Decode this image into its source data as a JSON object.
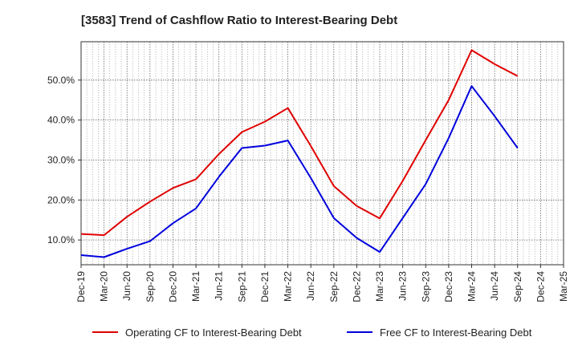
{
  "chart_data": {
    "type": "line",
    "title": "[3583]  Trend of Cashflow Ratio to Interest-Bearing Debt",
    "x": [
      "Dec-19",
      "Mar-20",
      "Jun-20",
      "Sep-20",
      "Dec-20",
      "Mar-21",
      "Jun-21",
      "Sep-21",
      "Dec-21",
      "Mar-22",
      "Jun-22",
      "Sep-22",
      "Dec-22",
      "Mar-23",
      "Jun-23",
      "Sep-23",
      "Dec-23",
      "Mar-24",
      "Jun-24",
      "Sep-24",
      "Dec-24",
      "Mar-25"
    ],
    "series": [
      {
        "name": "Operating CF to Interest-Bearing Debt",
        "color": "#e00000",
        "values": [
          11.5,
          11.2,
          15.8,
          19.6,
          23.0,
          25.2,
          31.5,
          37.0,
          39.6,
          43.0,
          33.5,
          23.5,
          18.5,
          15.4,
          24.8,
          35.0,
          45.0,
          57.5,
          54.0,
          51.0,
          null,
          null
        ]
      },
      {
        "name": "Free CF to Interest-Bearing Debt",
        "color": "#0000dd",
        "values": [
          6.2,
          5.7,
          7.8,
          9.7,
          14.2,
          17.9,
          25.8,
          33.0,
          33.6,
          34.9,
          25.5,
          15.5,
          10.5,
          7.0,
          15.5,
          24.0,
          35.5,
          48.5,
          41.0,
          33.0,
          null,
          null
        ]
      }
    ],
    "yticks": [
      10,
      20,
      30,
      40,
      50
    ],
    "ytick_labels": [
      "10.0%",
      "20.0%",
      "30.0%",
      "40.0%",
      "50.0%"
    ],
    "ylim": [
      3.8,
      59.6
    ],
    "grid": true,
    "legend": "bottom"
  }
}
